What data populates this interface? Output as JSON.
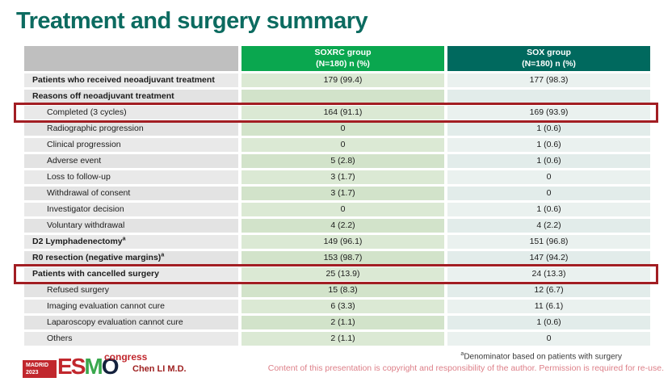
{
  "slide": {
    "title": "Treatment and surgery summary"
  },
  "table": {
    "header": {
      "soxrc": {
        "name": "SOXRC group",
        "sub": "(N=180)  n (%)"
      },
      "sox": {
        "name": "SOX group",
        "sub": "(N=180)  n (%)"
      }
    },
    "rows": [
      {
        "label": "Patients who received neoadjuvant treatment",
        "sup": "",
        "bold": true,
        "indent": false,
        "soxrc": "179 (99.4)",
        "sox": "177 (98.3)",
        "highlighted": false
      },
      {
        "label": "Reasons off neoadjuvant treatment",
        "sup": "",
        "bold": true,
        "indent": false,
        "soxrc": "",
        "sox": "",
        "highlighted": false
      },
      {
        "label": "Completed (3 cycles)",
        "sup": "",
        "bold": false,
        "indent": true,
        "soxrc": "164 (91.1)",
        "sox": "169 (93.9)",
        "highlighted": true
      },
      {
        "label": "Radiographic progression",
        "sup": "",
        "bold": false,
        "indent": true,
        "soxrc": "0",
        "sox": "1 (0.6)",
        "highlighted": false
      },
      {
        "label": "Clinical progression",
        "sup": "",
        "bold": false,
        "indent": true,
        "soxrc": "0",
        "sox": "1 (0.6)",
        "highlighted": false
      },
      {
        "label": "Adverse event",
        "sup": "",
        "bold": false,
        "indent": true,
        "soxrc": "5 (2.8)",
        "sox": "1 (0.6)",
        "highlighted": false
      },
      {
        "label": "Loss to follow-up",
        "sup": "",
        "bold": false,
        "indent": true,
        "soxrc": "3 (1.7)",
        "sox": "0",
        "highlighted": false
      },
      {
        "label": "Withdrawal of consent",
        "sup": "",
        "bold": false,
        "indent": true,
        "soxrc": "3 (1.7)",
        "sox": "0",
        "highlighted": false
      },
      {
        "label": "Investigator decision",
        "sup": "",
        "bold": false,
        "indent": true,
        "soxrc": "0",
        "sox": "1 (0.6)",
        "highlighted": false
      },
      {
        "label": "Voluntary withdrawal",
        "sup": "",
        "bold": false,
        "indent": true,
        "soxrc": "4 (2.2)",
        "sox": "4 (2.2)",
        "highlighted": false
      },
      {
        "label": "D2 Lymphadenectomy",
        "sup": "a",
        "bold": true,
        "indent": false,
        "soxrc": "149 (96.1)",
        "sox": "151 (96.8)",
        "highlighted": false
      },
      {
        "label": "R0 resection (negative margins)",
        "sup": "a",
        "bold": true,
        "indent": false,
        "soxrc": "153 (98.7)",
        "sox": "147 (94.2)",
        "highlighted": false
      },
      {
        "label": "Patients with cancelled surgery",
        "sup": "",
        "bold": true,
        "indent": false,
        "soxrc": "25 (13.9)",
        "sox": "24 (13.3)",
        "highlighted": true
      },
      {
        "label": "Refused surgery",
        "sup": "",
        "bold": false,
        "indent": true,
        "soxrc": "15 (8.3)",
        "sox": "12 (6.7)",
        "highlighted": false
      },
      {
        "label": "Imaging evaluation cannot cure",
        "sup": "",
        "bold": false,
        "indent": true,
        "soxrc": "6 (3.3)",
        "sox": "11 (6.1)",
        "highlighted": false
      },
      {
        "label": "Laparoscopy evaluation cannot cure",
        "sup": "",
        "bold": false,
        "indent": true,
        "soxrc": "2 (1.1)",
        "sox": "1 (0.6)",
        "highlighted": false
      },
      {
        "label": "Others",
        "sup": "",
        "bold": false,
        "indent": true,
        "soxrc": "2 (1.1)",
        "sox": "0",
        "highlighted": false
      }
    ]
  },
  "footer": {
    "logo": {
      "city": "MADRID",
      "year": "2023",
      "esmo": "ESMO",
      "congress": "congress"
    },
    "presenter": "Chen LI M.D.",
    "footnote_sup": "a",
    "footnote": "Denominator based on patients with surgery",
    "copyright": "Content of this presentation is copyright and responsibility of the author. Permission is required for re-use."
  },
  "colors": {
    "title": "#0c6b60",
    "header_soxrc": "#0aa74f",
    "header_sox": "#00695e",
    "soxrc_cell": "#dbe9d4",
    "sox_cell": "#eaf1ef",
    "label_cell": "#e9e9e9",
    "highlight_border": "#a21e23",
    "esmo_red": "#c1272d",
    "esmo_green": "#39a84d",
    "esmo_dark": "#14213d",
    "copyright_text": "#dd7f88"
  }
}
